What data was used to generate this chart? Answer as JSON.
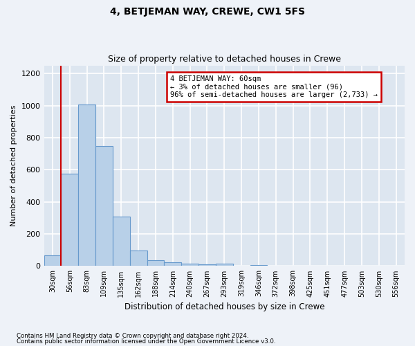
{
  "title": "4, BETJEMAN WAY, CREWE, CW1 5FS",
  "subtitle": "Size of property relative to detached houses in Crewe",
  "xlabel": "Distribution of detached houses by size in Crewe",
  "ylabel": "Number of detached properties",
  "footnote1": "Contains HM Land Registry data © Crown copyright and database right 2024.",
  "footnote2": "Contains public sector information licensed under the Open Government Licence v3.0.",
  "categories": [
    "30sqm",
    "56sqm",
    "83sqm",
    "109sqm",
    "135sqm",
    "162sqm",
    "188sqm",
    "214sqm",
    "240sqm",
    "267sqm",
    "293sqm",
    "319sqm",
    "346sqm",
    "372sqm",
    "398sqm",
    "425sqm",
    "451sqm",
    "477sqm",
    "503sqm",
    "530sqm",
    "556sqm"
  ],
  "values": [
    65,
    575,
    1005,
    750,
    310,
    95,
    38,
    25,
    15,
    12,
    15,
    0,
    5,
    0,
    0,
    0,
    0,
    0,
    0,
    0,
    0
  ],
  "bar_color": "#b8d0e8",
  "bar_edge_color": "#6699cc",
  "vline_color": "#cc0000",
  "vline_x_index": 1,
  "ylim": [
    0,
    1250
  ],
  "yticks": [
    0,
    200,
    400,
    600,
    800,
    1000,
    1200
  ],
  "annotation_line1": "4 BETJEMAN WAY: 60sqm",
  "annotation_line2": "← 3% of detached houses are smaller (96)",
  "annotation_line3": "96% of semi-detached houses are larger (2,733) →",
  "annotation_box_color": "white",
  "annotation_box_edge": "#cc0000",
  "bg_color": "#eef2f8",
  "plot_bg_color": "#dde6f0",
  "title_fontsize": 10,
  "subtitle_fontsize": 9
}
